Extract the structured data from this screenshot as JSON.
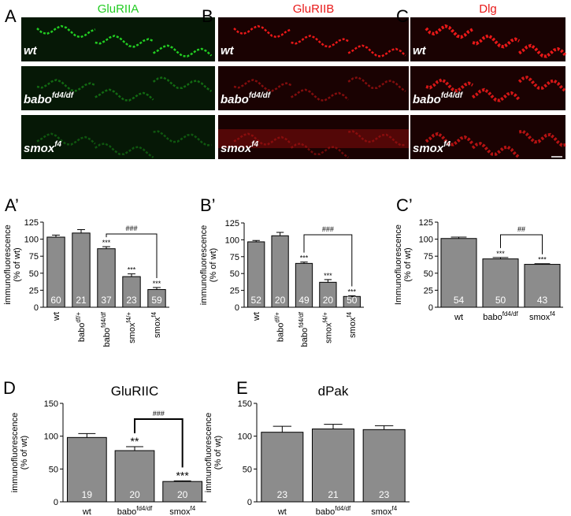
{
  "image_panels": [
    {
      "letter": "A",
      "title": "GluRIIA",
      "color": "#22cc22",
      "rows": [
        {
          "genotype": "wt"
        },
        {
          "genotype": "babo",
          "sup": "fd4/df"
        },
        {
          "genotype": "smox",
          "sup": "f4"
        }
      ]
    },
    {
      "letter": "B",
      "title": "GluRIIB",
      "color": "#e81818",
      "rows": [
        {
          "genotype": "wt"
        },
        {
          "genotype": "babo",
          "sup": "fd4/df"
        },
        {
          "genotype": "smox",
          "sup": "f4"
        }
      ]
    },
    {
      "letter": "C",
      "title": "Dlg",
      "color": "#e81818",
      "rows": [
        {
          "genotype": "wt"
        },
        {
          "genotype": "babo",
          "sup": "fd4/df"
        },
        {
          "genotype": "smox",
          "sup": "f4"
        }
      ]
    }
  ],
  "chart_data": [
    {
      "type": "bar",
      "letter": "A’",
      "y_label": [
        "immunofluorescence",
        "(% of wt)"
      ],
      "color": "#8c8c8c",
      "categories": [
        "wt",
        "babo",
        "babo",
        "smox",
        "smox"
      ],
      "superscripts": [
        null,
        "df/+",
        "fd4/df",
        "f4/+",
        "f4"
      ],
      "values": [
        103,
        109,
        86,
        45,
        26
      ],
      "errors": [
        3,
        5,
        3,
        4,
        3
      ],
      "n": [
        60,
        21,
        37,
        23,
        59
      ],
      "stars": [
        null,
        null,
        "***",
        "***",
        "***"
      ],
      "bracket": {
        "from": 2,
        "to": 4,
        "label": "###"
      },
      "ylim": [
        0,
        125
      ],
      "yticks": [
        0,
        25,
        50,
        75,
        100,
        125
      ]
    },
    {
      "type": "bar",
      "letter": "B’",
      "y_label": [
        "immunofluorescence",
        "(% of wt)"
      ],
      "color": "#8c8c8c",
      "categories": [
        "wt",
        "babo",
        "babo",
        "smox",
        "smox"
      ],
      "superscripts": [
        null,
        "df/+",
        "fd4/df",
        "f4/+",
        "f4"
      ],
      "values": [
        97,
        106,
        65,
        37,
        16
      ],
      "errors": [
        2,
        5,
        2,
        4,
        1
      ],
      "n": [
        52,
        20,
        49,
        20,
        50
      ],
      "stars": [
        null,
        null,
        "***",
        "***",
        "***"
      ],
      "bracket": {
        "from": 2,
        "to": 4,
        "label": "###"
      },
      "ylim": [
        0,
        125
      ],
      "yticks": [
        0,
        25,
        50,
        75,
        100,
        125
      ]
    },
    {
      "type": "bar",
      "letter": "C’",
      "y_label": [
        "Immunofluorescence",
        "(% of wt)"
      ],
      "color": "#8c8c8c",
      "categories": [
        "wt",
        "babo",
        "smox"
      ],
      "superscripts": [
        null,
        "fd4/df",
        "f4"
      ],
      "values": [
        101,
        71,
        63
      ],
      "errors": [
        2,
        2,
        1
      ],
      "n": [
        54,
        50,
        43
      ],
      "stars": [
        null,
        "***",
        "***"
      ],
      "bracket": {
        "from": 1,
        "to": 2,
        "label": "##"
      },
      "ylim": [
        0,
        125
      ],
      "yticks": [
        0,
        25,
        50,
        75,
        100,
        125
      ]
    },
    {
      "type": "bar",
      "letter": "D",
      "title": "GluRIIC",
      "y_label": [
        "immunofluorescence",
        "(% of wt)"
      ],
      "color": "#8c8c8c",
      "categories": [
        "wt",
        "babo",
        "smox"
      ],
      "superscripts": [
        null,
        "fd4/df",
        "f4"
      ],
      "values": [
        98,
        78,
        31
      ],
      "errors": [
        6,
        6,
        1
      ],
      "n": [
        19,
        20,
        20
      ],
      "stars": [
        null,
        "**",
        "***"
      ],
      "bracket": {
        "from": 1,
        "to": 2,
        "label": "###"
      },
      "ylim": [
        0,
        150
      ],
      "yticks": [
        0,
        50,
        100,
        150
      ]
    },
    {
      "type": "bar",
      "letter": "E",
      "title": "dPak",
      "y_label": [
        "immunofluorescence",
        "(% of wt)"
      ],
      "color": "#8c8c8c",
      "categories": [
        "wt",
        "babo",
        "smox"
      ],
      "superscripts": [
        null,
        "fd4/df",
        "f4"
      ],
      "values": [
        106,
        111,
        110
      ],
      "errors": [
        9,
        7,
        6
      ],
      "n": [
        23,
        21,
        23
      ],
      "ylim": [
        0,
        150
      ],
      "yticks": [
        0,
        50,
        100,
        150
      ]
    }
  ]
}
